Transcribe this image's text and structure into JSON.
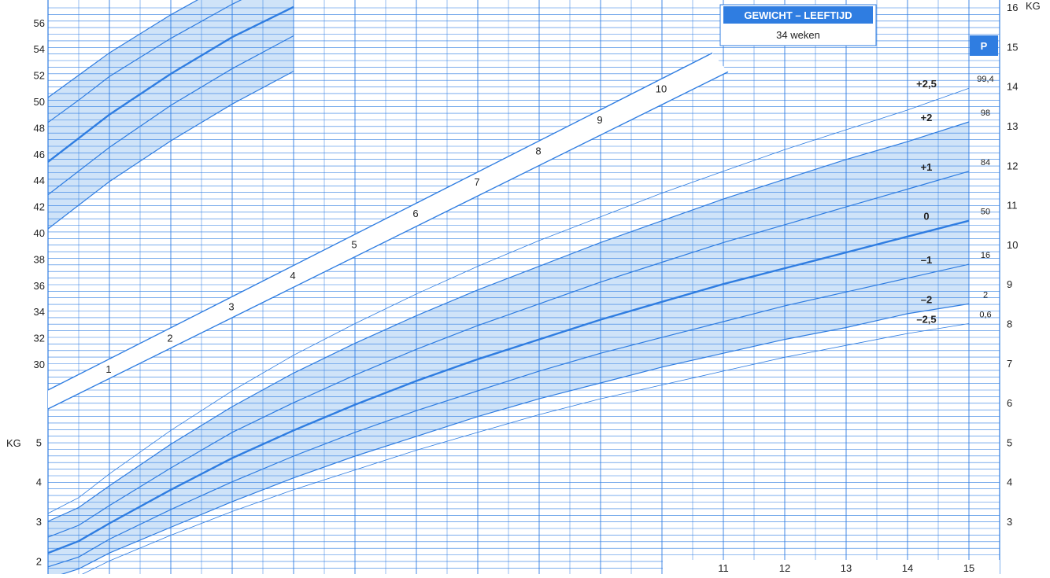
{
  "chart_data": {
    "type": "line",
    "title": "GEWICHT – LEEFTIJD",
    "subtitle": "34 weken",
    "percentile_header": "P",
    "ylabel_left": "KG",
    "ylabel_right": "KG",
    "x_ticks": [
      "11",
      "12",
      "13",
      "14",
      "15"
    ],
    "week_markers": [
      "1",
      "2",
      "3",
      "4",
      "5",
      "6",
      "7",
      "8",
      "9",
      "10"
    ],
    "length_axis_ticks": [
      "30",
      "32",
      "34",
      "36",
      "38",
      "40",
      "42",
      "44",
      "46",
      "48",
      "50",
      "52",
      "54",
      "56"
    ],
    "weight_axis_left_ticks": [
      "2",
      "3",
      "4",
      "5"
    ],
    "weight_axis_right_ticks": [
      "3",
      "4",
      "5",
      "6",
      "7",
      "8",
      "9",
      "10",
      "11",
      "12",
      "13",
      "14",
      "15",
      "16"
    ],
    "colors": {
      "line": "#2f7de1",
      "band": "#cfe3f8",
      "text": "#222222"
    },
    "weight_series": [
      {
        "sd": "+2,5",
        "percentile": "99,4",
        "months": [
          0,
          0.5,
          1,
          2,
          3,
          4,
          5,
          6,
          7,
          8,
          9,
          10,
          11,
          12,
          13,
          14,
          15
        ],
        "kg": [
          3.2,
          3.6,
          4.2,
          5.3,
          6.3,
          7.2,
          8.0,
          8.75,
          9.45,
          10.1,
          10.7,
          11.3,
          11.85,
          12.4,
          12.9,
          13.4,
          13.95
        ]
      },
      {
        "sd": "+2",
        "percentile": "98",
        "months": [
          0,
          0.5,
          1,
          2,
          3,
          4,
          5,
          6,
          7,
          8,
          9,
          10,
          11,
          12,
          13,
          14,
          15
        ],
        "kg": [
          3.0,
          3.35,
          3.9,
          4.95,
          5.9,
          6.75,
          7.5,
          8.2,
          8.85,
          9.45,
          10.05,
          10.6,
          11.15,
          11.65,
          12.15,
          12.6,
          13.1
        ]
      },
      {
        "sd": "+1",
        "percentile": "84",
        "months": [
          0,
          0.5,
          1,
          2,
          3,
          4,
          5,
          6,
          7,
          8,
          9,
          10,
          11,
          12,
          13,
          14,
          15
        ],
        "kg": [
          2.6,
          2.9,
          3.4,
          4.35,
          5.25,
          6.0,
          6.7,
          7.35,
          7.95,
          8.5,
          9.05,
          9.55,
          10.05,
          10.5,
          10.95,
          11.4,
          11.85
        ]
      },
      {
        "sd": "0",
        "percentile": "50",
        "months": [
          0,
          0.5,
          1,
          2,
          3,
          4,
          5,
          6,
          7,
          8,
          9,
          10,
          11,
          12,
          13,
          14,
          15
        ],
        "kg": [
          2.2,
          2.5,
          2.95,
          3.8,
          4.6,
          5.3,
          5.95,
          6.55,
          7.1,
          7.6,
          8.1,
          8.55,
          9.0,
          9.4,
          9.8,
          10.2,
          10.6
        ]
      },
      {
        "sd": "–1",
        "percentile": "16",
        "months": [
          0,
          0.5,
          1,
          2,
          3,
          4,
          5,
          6,
          7,
          8,
          9,
          10,
          11,
          12,
          13,
          14,
          15
        ],
        "kg": [
          1.85,
          2.1,
          2.55,
          3.3,
          4.0,
          4.65,
          5.25,
          5.8,
          6.3,
          6.8,
          7.25,
          7.65,
          8.05,
          8.45,
          8.8,
          9.15,
          9.5
        ]
      },
      {
        "sd": "–2",
        "percentile": "2",
        "months": [
          0,
          0.5,
          1,
          2,
          3,
          4,
          5,
          6,
          7,
          8,
          9,
          10,
          11,
          12,
          13,
          14,
          15
        ],
        "kg": [
          1.55,
          1.8,
          2.2,
          2.85,
          3.5,
          4.1,
          4.65,
          5.15,
          5.65,
          6.1,
          6.5,
          6.9,
          7.25,
          7.6,
          7.9,
          8.25,
          8.5
        ]
      },
      {
        "sd": "–2,5",
        "percentile": "0,6",
        "months": [
          0,
          0.5,
          1,
          2,
          3,
          4,
          5,
          6,
          7,
          8,
          9,
          10,
          11,
          12,
          13,
          14,
          15
        ],
        "kg": [
          1.4,
          1.62,
          2.0,
          2.65,
          3.25,
          3.8,
          4.3,
          4.8,
          5.25,
          5.7,
          6.1,
          6.45,
          6.8,
          7.15,
          7.45,
          7.75,
          8.0
        ]
      }
    ],
    "length_series": [
      {
        "months": [
          0,
          0.5,
          1,
          2,
          3,
          4
        ],
        "cm": [
          50.3,
          52.0,
          53.7,
          56.6,
          59.2,
          61.4
        ]
      },
      {
        "months": [
          0,
          0.5,
          1,
          2,
          3,
          4
        ],
        "cm": [
          48.4,
          50.1,
          51.9,
          54.8,
          57.4,
          59.7
        ]
      },
      {
        "months": [
          0,
          0.5,
          1,
          2,
          3,
          4
        ],
        "cm": [
          45.4,
          47.2,
          49.0,
          52.1,
          54.9,
          57.2
        ]
      },
      {
        "months": [
          0,
          0.5,
          1,
          2,
          3,
          4
        ],
        "cm": [
          42.9,
          44.7,
          46.5,
          49.7,
          52.5,
          55.0
        ]
      },
      {
        "months": [
          0,
          0.5,
          1,
          2,
          3,
          4
        ],
        "cm": [
          40.3,
          42.1,
          43.9,
          47.0,
          49.8,
          52.3
        ]
      }
    ]
  }
}
